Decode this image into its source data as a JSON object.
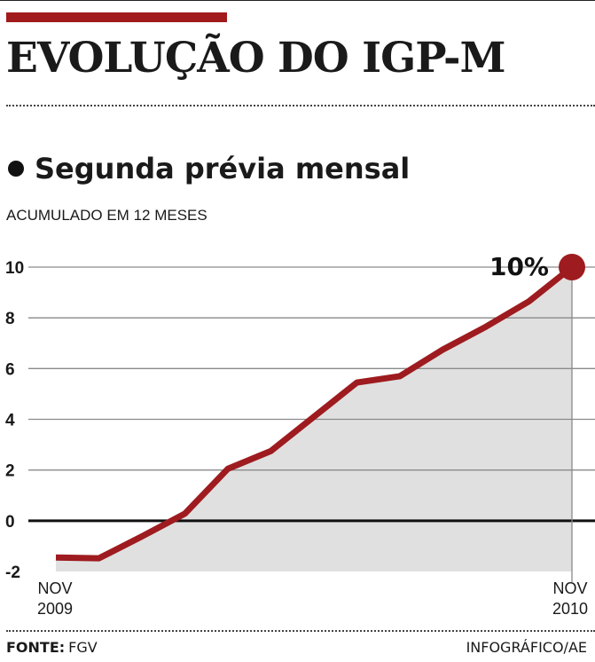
{
  "header": {
    "title": "EVOLUÇÃO DO IGP-M",
    "subtitle": "Segunda prévia mensal",
    "unit_label": "ACUMULADO EM 12 MESES"
  },
  "colors": {
    "accent": "#a11a1c",
    "line": "#9e1b1f",
    "area": "#e0e0e0",
    "grid": "#8a8a8a",
    "zero": "#111111"
  },
  "chart_data": {
    "type": "area",
    "ylim": [
      -2,
      10
    ],
    "y_ticks": [
      -2,
      0,
      2,
      4,
      6,
      8,
      10
    ],
    "x_labels": [
      {
        "line1": "NOV",
        "line2": "2009"
      },
      {
        "line1": "NOV",
        "line2": "2010"
      }
    ],
    "x": [
      0,
      1,
      2,
      3,
      4,
      5,
      6,
      7,
      8,
      9,
      10,
      11,
      12
    ],
    "values": [
      -1.45,
      -1.48,
      -0.62,
      0.28,
      2.05,
      2.75,
      4.1,
      5.45,
      5.7,
      6.75,
      7.65,
      8.65,
      10.0
    ],
    "annotation": "10%",
    "grid": true,
    "legend": "none"
  },
  "footer": {
    "source_label": "FONTE:",
    "source": "FGV",
    "credit": "INFOGRÁFICO/AE"
  }
}
